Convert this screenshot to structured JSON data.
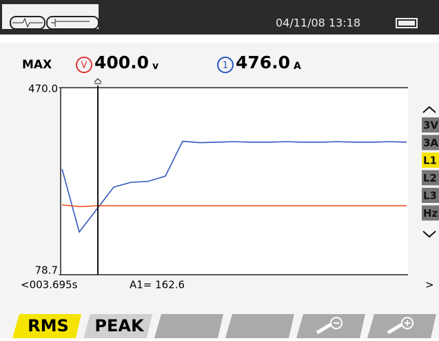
{
  "header": {
    "datetime": "04/11/08 13:18"
  },
  "readings": {
    "mode": "MAX",
    "voltage": {
      "symbol": "V",
      "value": "400.0",
      "unit": "v"
    },
    "current": {
      "symbol": "1",
      "value": "476.0",
      "unit": "A"
    }
  },
  "chart_data": {
    "type": "line",
    "ylim": [
      78.7,
      470
    ],
    "yticks": [
      {
        "value": 470,
        "label": "470.0"
      },
      78.7
    ],
    "series": [
      {
        "color": "#3355bb",
        "values": [
          300,
          168,
          215,
          262,
          272,
          274,
          285,
          358,
          355,
          356,
          357,
          356,
          356,
          357,
          356,
          356,
          357,
          356,
          356,
          357,
          356
        ]
      },
      {
        "color": "#ee5522",
        "values": [
          225,
          221,
          223,
          223,
          223,
          223,
          223,
          223,
          223,
          223,
          223,
          223,
          223,
          223,
          223,
          223,
          223,
          223,
          223,
          223,
          223
        ]
      }
    ]
  },
  "cursor": {
    "time": "<003.695s",
    "reading": "A1= 162.6",
    "next": ">"
  },
  "side_buttons": [
    "3V",
    "3A",
    "L1",
    "L2",
    "L3",
    "Hz"
  ],
  "tabs": [
    "RMS",
    "PEAK"
  ]
}
